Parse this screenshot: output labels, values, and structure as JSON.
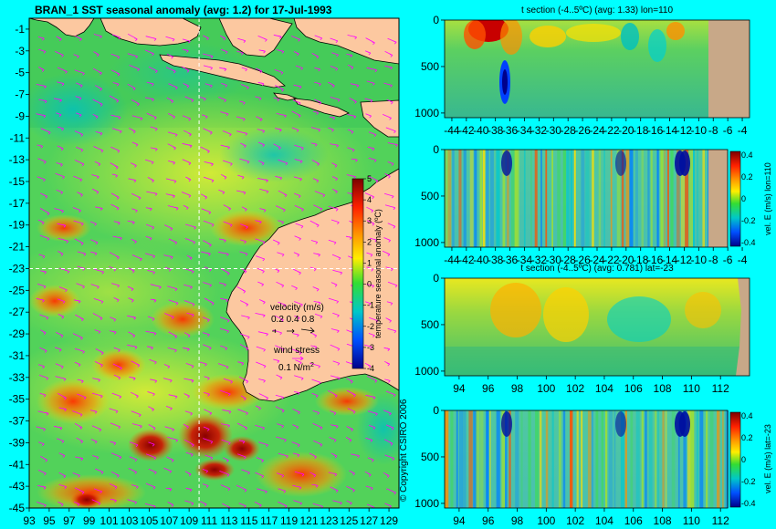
{
  "header": {
    "main_title": "BRAN_1  SST seasonal anomaly  (avg: 1.2) for 17-Jul-1993",
    "copyright": "© Copyright CSIRO 2006"
  },
  "colors": {
    "land": "#fcc8a0",
    "background": "#00ffff",
    "arrow": "#ff00ff",
    "seafloor": "#c8a888"
  },
  "chart_data": [
    {
      "id": "map",
      "type": "heatmap",
      "title": "BRAN_1  SST seasonal anomaly  (avg: 1.2) for 17-Jul-1993",
      "x_ticks": [
        "93",
        "95",
        "97",
        "99",
        "101",
        "103",
        "105",
        "107",
        "109",
        "111",
        "113",
        "115",
        "117",
        "119",
        "121",
        "123",
        "125",
        "127",
        "129"
      ],
      "y_ticks": [
        "-1",
        "-3",
        "-5",
        "-7",
        "-9",
        "-11",
        "-13",
        "-15",
        "-17",
        "-19",
        "-21",
        "-23",
        "-25",
        "-27",
        "-29",
        "-31",
        "-33",
        "-35",
        "-37",
        "-39",
        "-41",
        "-43",
        "-45"
      ],
      "xlim": [
        93,
        130
      ],
      "ylim": [
        -45,
        0
      ],
      "crosshair": {
        "lon": 110,
        "lat": -23
      },
      "colorbar": {
        "label": "temperature seasonal anomaly (ºC)",
        "ticks": [
          "5",
          "4",
          "3",
          "2",
          "1",
          "0",
          "-1",
          "-2",
          "-3",
          "-4"
        ],
        "range": [
          -4,
          5
        ]
      },
      "legend": {
        "velocity_label": "velocity (m/s)",
        "velocity_values": "0.2 0.4 0.8",
        "wind_label": "wind stress",
        "wind_value": "0.1 N/m",
        "wind_exp": "2"
      }
    },
    {
      "id": "panel1",
      "type": "heatmap",
      "title": "t section (-4..5ºC) (avg: 1.33) lon=110",
      "x_ticks": [
        "-44",
        "-42",
        "-40",
        "-38",
        "-36",
        "-34",
        "-32",
        "-30",
        "-28",
        "-26",
        "-24",
        "-22",
        "-20",
        "-18",
        "-16",
        "-14",
        "-12",
        "-10",
        "-8",
        "-6",
        "-4"
      ],
      "y_ticks": [
        "0",
        "500",
        "1000"
      ],
      "xlim": [
        -45,
        -3
      ],
      "ylim": [
        0,
        1050
      ]
    },
    {
      "id": "panel2",
      "type": "heatmap",
      "title": "",
      "x_ticks": [
        "-44",
        "-42",
        "-40",
        "-38",
        "-36",
        "-34",
        "-32",
        "-30",
        "-28",
        "-26",
        "-24",
        "-22",
        "-20",
        "-18",
        "-16",
        "-14",
        "-12",
        "-10",
        "-8",
        "-6",
        "-4"
      ],
      "y_ticks": [
        "0",
        "500",
        "1000"
      ],
      "xlim": [
        -45,
        -3
      ],
      "ylim": [
        0,
        1050
      ],
      "colorbar": {
        "label": "vel. E (m/s) lon=110",
        "ticks": [
          "0.4",
          "0.2",
          "0",
          "-0.2",
          "-0.4"
        ],
        "range": [
          -0.4,
          0.4
        ]
      }
    },
    {
      "id": "panel3",
      "type": "heatmap",
      "title": "t section (-4..5ºC) (avg: 0.781) lat=-23",
      "x_ticks": [
        "94",
        "96",
        "98",
        "100",
        "102",
        "104",
        "106",
        "108",
        "110",
        "112"
      ],
      "y_ticks": [
        "0",
        "500",
        "1000"
      ],
      "xlim": [
        93,
        114
      ],
      "ylim": [
        0,
        1050
      ]
    },
    {
      "id": "panel4",
      "type": "heatmap",
      "title": "",
      "x_ticks": [
        "94",
        "96",
        "98",
        "100",
        "102",
        "104",
        "106",
        "108",
        "110",
        "112"
      ],
      "y_ticks": [
        "0",
        "500",
        "1000"
      ],
      "xlim": [
        93,
        114
      ],
      "ylim": [
        0,
        1050
      ],
      "colorbar": {
        "label": "vel. E (m/s) lat=-23",
        "ticks": [
          "0.4",
          "0.2",
          "0",
          "-0.2",
          "-0.4"
        ],
        "range": [
          -0.4,
          0.4
        ]
      }
    }
  ]
}
